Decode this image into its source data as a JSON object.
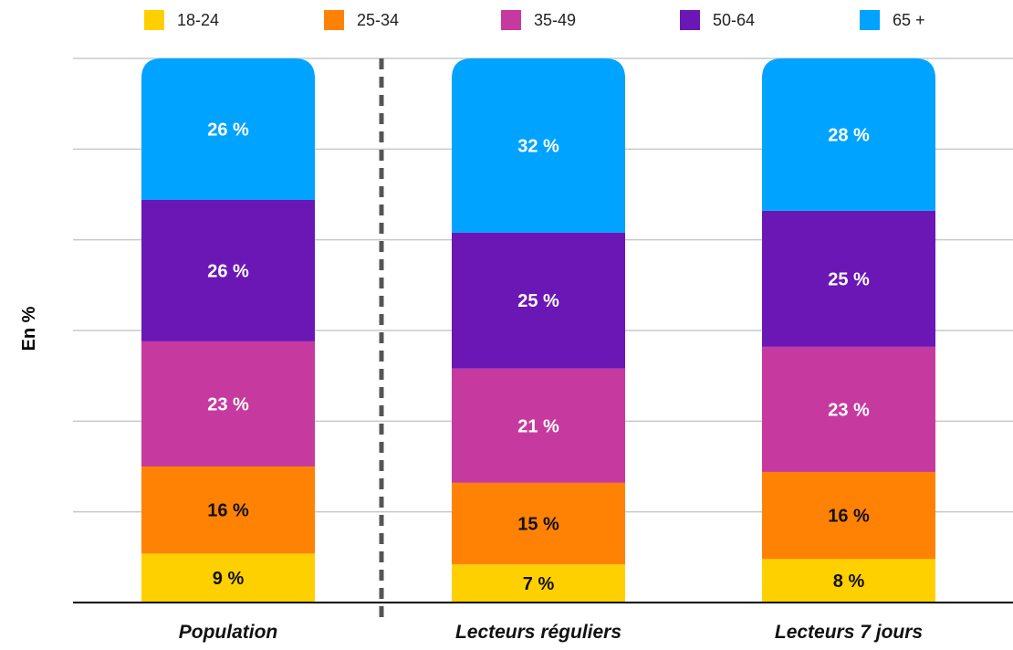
{
  "chart_data": {
    "type": "bar",
    "stacked": true,
    "ylabel": "En %",
    "ylim": [
      0,
      100
    ],
    "grid": true,
    "legend_position": "top",
    "categories": [
      "Population",
      "Lecteurs réguliers",
      "Lecteurs 7 jours"
    ],
    "series": [
      {
        "name": "18-24",
        "color": "#FFD000",
        "values": [
          9,
          7,
          8
        ],
        "labels": [
          "9 %",
          "7 %",
          "8 %"
        ],
        "label_color": "#111111"
      },
      {
        "name": "25-34",
        "color": "#FF8205",
        "values": [
          16,
          15,
          16
        ],
        "labels": [
          "16 %",
          "15 %",
          "16 %"
        ],
        "label_color": "#111111"
      },
      {
        "name": "35-49",
        "color": "#C63A9F",
        "values": [
          23,
          21,
          23
        ],
        "labels": [
          "23 %",
          "21 %",
          "23 %"
        ],
        "label_color": "#ffffff"
      },
      {
        "name": "50-64",
        "color": "#6A17B5",
        "values": [
          26,
          25,
          25
        ],
        "labels": [
          "26 %",
          "25 %",
          "25 %"
        ],
        "label_color": "#ffffff"
      },
      {
        "name": "65 +",
        "color": "#00A3FF",
        "values": [
          26,
          32,
          28
        ],
        "labels": [
          "26 %",
          "32 %",
          "28 %"
        ],
        "label_color": "#ffffff"
      }
    ]
  }
}
